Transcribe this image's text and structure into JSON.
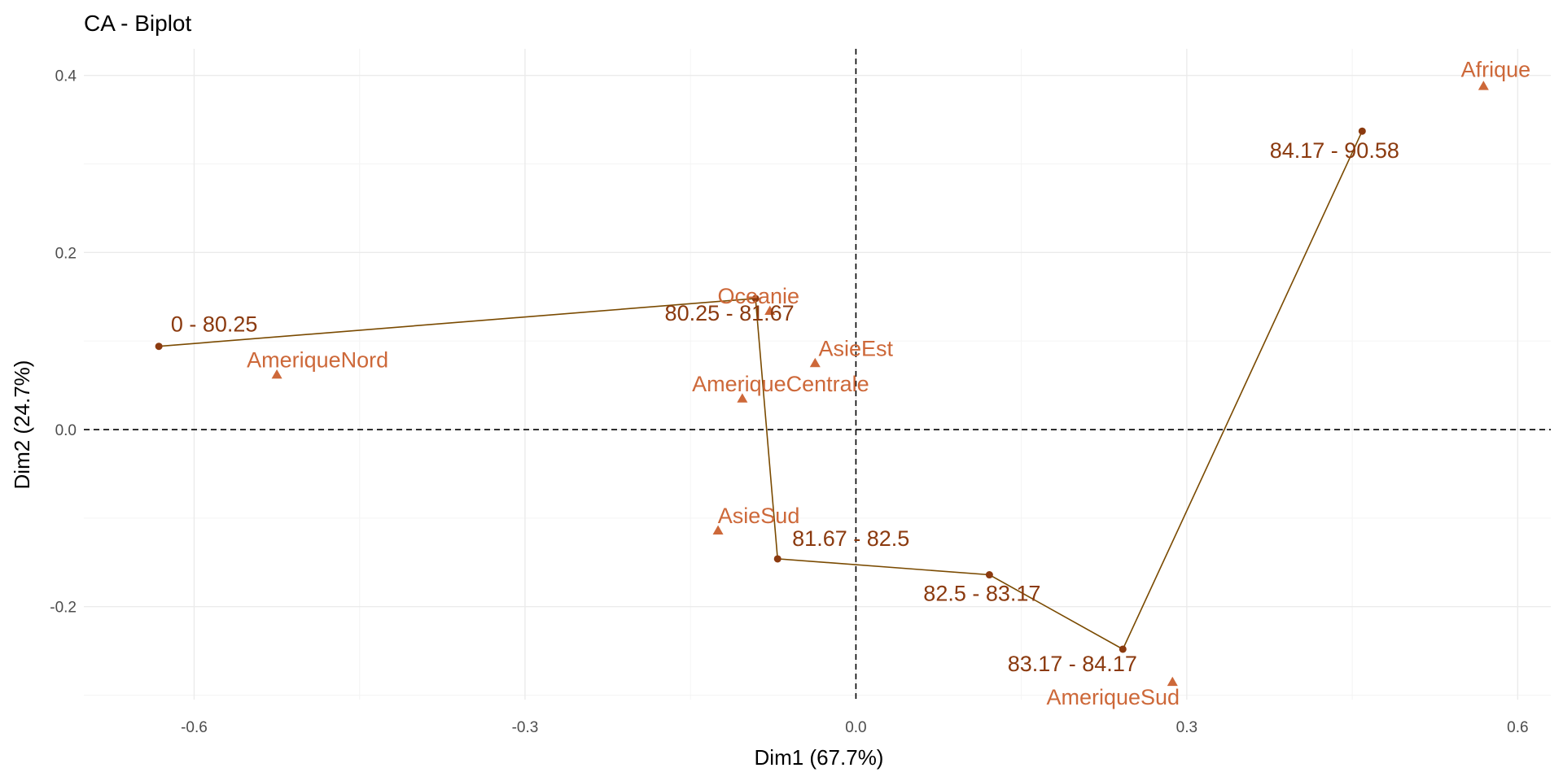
{
  "chart_data": {
    "type": "scatter",
    "title": "CA - Biplot",
    "xlabel": "Dim1 (67.7%)",
    "ylabel": "Dim2 (24.7%)",
    "xlim": [
      -0.7,
      0.63
    ],
    "ylim": [
      -0.305,
      0.43
    ],
    "x_ticks": [
      -0.6,
      -0.3,
      0.0,
      0.3,
      0.6
    ],
    "x_tick_labels": [
      "-0.6",
      "-0.3",
      "0.0",
      "0.3",
      "0.6"
    ],
    "y_ticks": [
      -0.2,
      0.0,
      0.2,
      0.4
    ],
    "y_tick_labels": [
      "-0.2",
      "0.0",
      "0.2",
      "0.4"
    ],
    "grid": true,
    "row_points": {
      "name": "rows",
      "marker": "circle",
      "connected": true,
      "color": "#8b3a0f",
      "line_color": "#7a4a00",
      "points": [
        {
          "label": "0 - 80.25",
          "x": -0.632,
          "y": 0.094
        },
        {
          "label": "80.25 - 81.67",
          "x": -0.091,
          "y": 0.148
        },
        {
          "label": "81.67 - 82.5",
          "x": -0.071,
          "y": -0.146
        },
        {
          "label": "82.5 - 83.17",
          "x": 0.121,
          "y": -0.164
        },
        {
          "label": "83.17 - 84.17",
          "x": 0.242,
          "y": -0.248
        },
        {
          "label": "84.17 - 90.58",
          "x": 0.459,
          "y": 0.337
        }
      ]
    },
    "column_points": {
      "name": "columns",
      "marker": "triangle",
      "color": "#cd6839",
      "points": [
        {
          "label": "Afrique",
          "x": 0.569,
          "y": 0.388
        },
        {
          "label": "AmeriqueNord",
          "x": -0.525,
          "y": 0.062
        },
        {
          "label": "Oceanie",
          "x": -0.078,
          "y": 0.134
        },
        {
          "label": "AsieEst",
          "x": -0.037,
          "y": 0.075
        },
        {
          "label": "AmeriqueCentrale",
          "x": -0.103,
          "y": 0.035
        },
        {
          "label": "AsieSud",
          "x": -0.125,
          "y": -0.114
        },
        {
          "label": "AmeriqueSud",
          "x": 0.287,
          "y": -0.285
        }
      ]
    }
  }
}
